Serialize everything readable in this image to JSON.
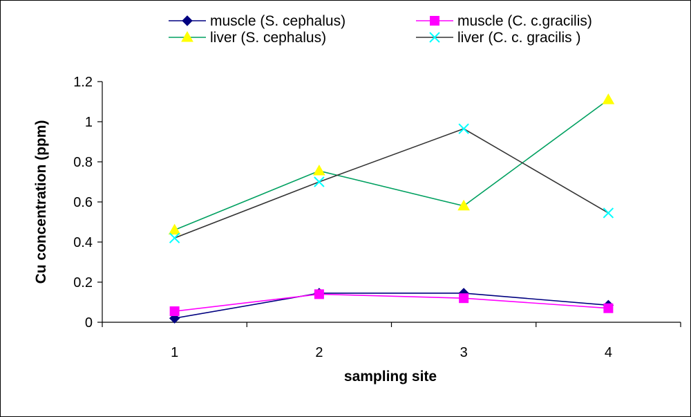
{
  "chart_data": {
    "type": "line",
    "title": "",
    "xlabel": "sampling site",
    "ylabel": "Cu concentration  (ppm)",
    "categories": [
      "1",
      "2",
      "3",
      "4"
    ],
    "ylim": [
      0,
      1.2
    ],
    "yticks": [
      0,
      0.2,
      0.4,
      0.6,
      0.8,
      1,
      1.2
    ],
    "ytick_labels": [
      "0",
      "0.2",
      "0.4",
      "0.6",
      "0.8",
      "1",
      "1.2"
    ],
    "grid": false,
    "legend_position": "top",
    "series": [
      {
        "name": "muscle (S. cephalus)",
        "values": [
          0.02,
          0.145,
          0.145,
          0.085
        ],
        "color": "#000080",
        "marker": "diamond"
      },
      {
        "name": "muscle (C. c.gracilis)",
        "values": [
          0.055,
          0.14,
          0.12,
          0.07
        ],
        "color": "#ff00ff",
        "marker": "square"
      },
      {
        "name": "liver (S. cephalus)",
        "values": [
          0.46,
          0.755,
          0.58,
          1.11
        ],
        "color": "#00a060",
        "marker_color": "#ffff00",
        "marker": "triangle"
      },
      {
        "name": "liver (C. c. gracilis )",
        "values": [
          0.42,
          0.7,
          0.965,
          0.545
        ],
        "color": "#333333",
        "marker_color": "#00ffff",
        "marker": "x"
      }
    ]
  }
}
